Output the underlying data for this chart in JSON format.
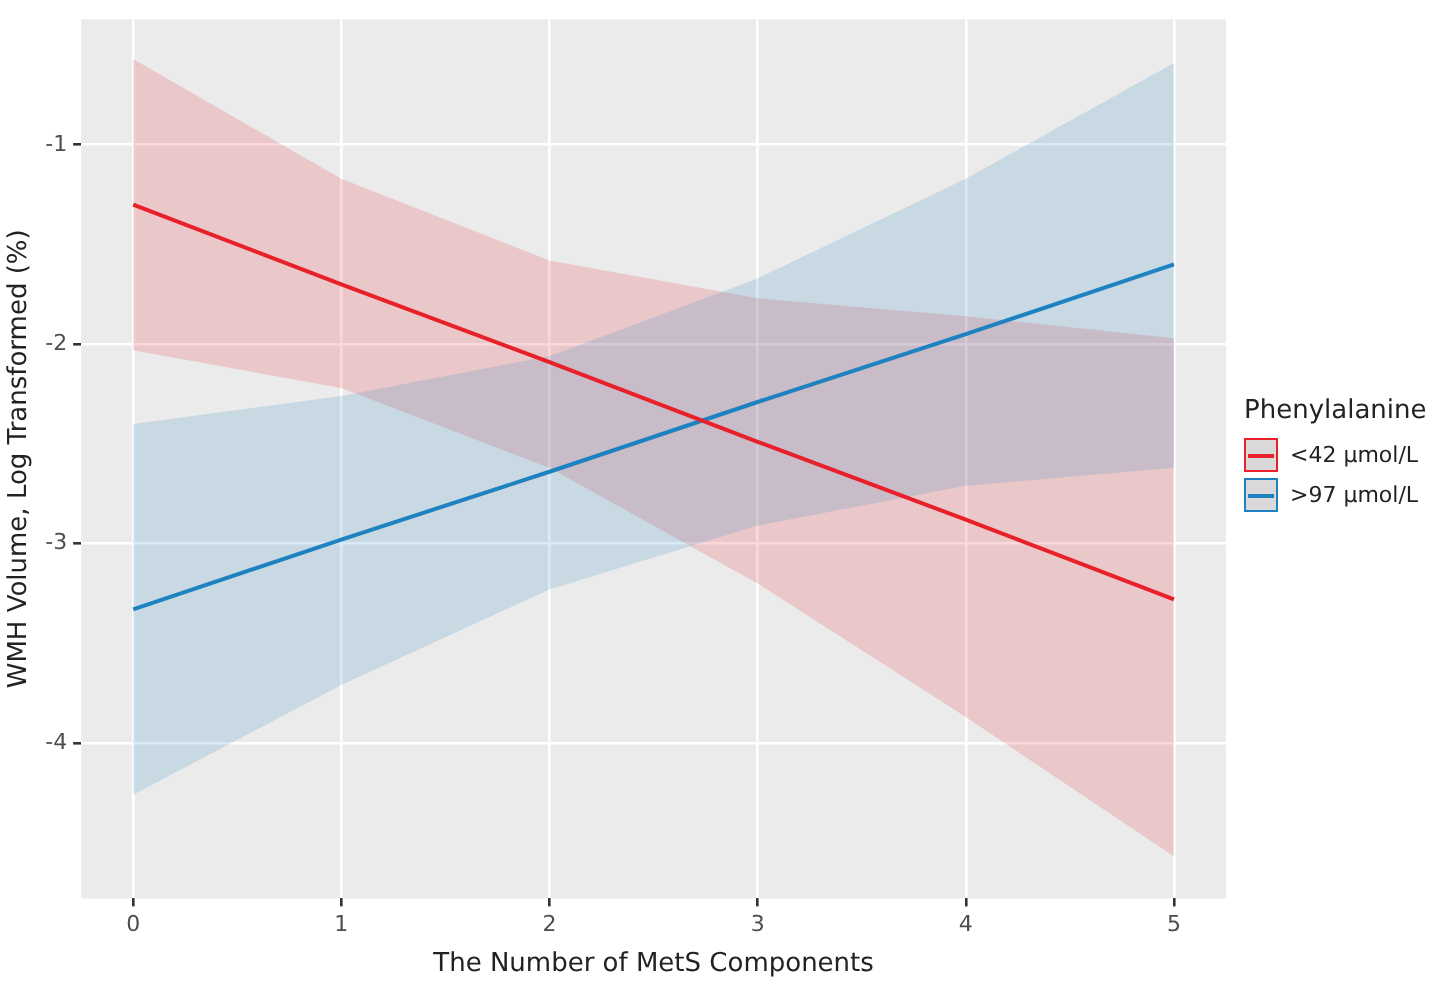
{
  "chart_data": {
    "type": "line",
    "xlabel": "The Number of MetS Components",
    "ylabel": "WMH Volume, Log Transformed (%)",
    "legend_title": "Phenylalanine",
    "x": [
      0,
      1,
      2,
      3,
      4,
      5
    ],
    "series": [
      {
        "name": "<42 µmol/L",
        "color": "#e8202a",
        "values": [
          -1.3,
          -1.7,
          -2.09,
          -2.49,
          -2.88,
          -3.28
        ],
        "lower": [
          -2.03,
          -2.22,
          -2.62,
          -3.2,
          -3.87,
          -4.57
        ],
        "upper": [
          -0.57,
          -1.17,
          -1.58,
          -1.77,
          -1.86,
          -1.97
        ]
      },
      {
        "name": ">97 µmol/L",
        "color": "#1f82c0",
        "values": [
          -3.33,
          -2.98,
          -2.64,
          -2.29,
          -1.95,
          -1.6
        ],
        "lower": [
          -4.26,
          -3.71,
          -3.23,
          -2.91,
          -2.71,
          -2.62
        ],
        "upper": [
          -2.4,
          -2.26,
          -2.06,
          -1.67,
          -1.17,
          -0.59
        ]
      }
    ],
    "xlim": [
      -0.25,
      5.25
    ],
    "xticks": [
      0,
      1,
      2,
      3,
      4,
      5
    ],
    "ylim": [
      -4.78,
      -0.37
    ],
    "yticks": [
      -4,
      -3,
      -2,
      -1
    ],
    "grid": true,
    "legend": "right",
    "marker": "none",
    "line_style": "solid"
  }
}
